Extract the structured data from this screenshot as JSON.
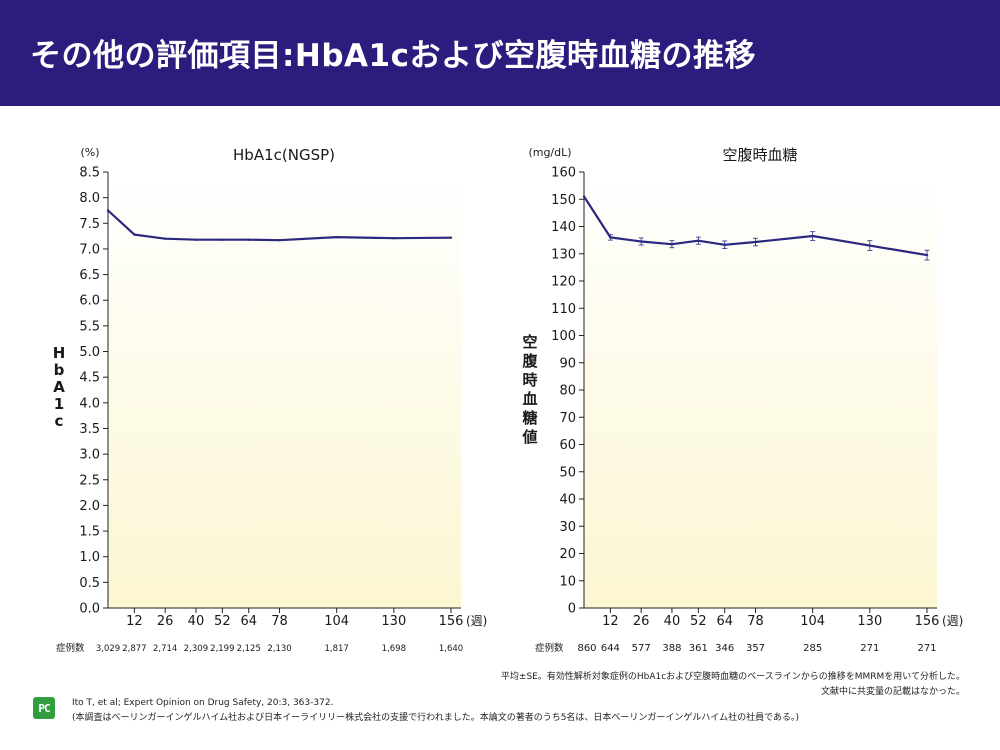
{
  "page_title": "その他の評価項目:HbA1cおよび空腹時血糖の推移",
  "colors": {
    "header": "#2b1d7e",
    "line": "#2b2880",
    "fill_top": "#ffffff",
    "fill_bottom": "#fcf6d2"
  },
  "chart_data": [
    {
      "type": "line",
      "title": "HbA1c(NGSP)",
      "unit_label": "(%)",
      "ylabel": "HbA1c",
      "x_unit": "(週)",
      "ylim": [
        0,
        8.5
      ],
      "y_ticks": [
        "0.0",
        "0.5",
        "1.0",
        "1.5",
        "2.0",
        "2.5",
        "3.0",
        "3.5",
        "4.0",
        "4.5",
        "5.0",
        "5.5",
        "6.0",
        "6.5",
        "7.0",
        "7.5",
        "8.0",
        "8.5"
      ],
      "x": [
        0,
        12,
        26,
        40,
        52,
        64,
        78,
        104,
        130,
        156
      ],
      "x_tick_labels": [
        "12",
        "26",
        "40",
        "52",
        "64",
        "78",
        "104",
        "130",
        "156"
      ],
      "values": [
        7.75,
        7.28,
        7.2,
        7.18,
        7.18,
        7.18,
        7.17,
        7.23,
        7.21,
        7.22
      ],
      "cases_label": "症例数",
      "cases": [
        "3,029",
        "2,877",
        "2,714",
        "2,309",
        "2,199",
        "2,125",
        "2,130",
        "1,817",
        "1,698",
        "1,640"
      ]
    },
    {
      "type": "line",
      "title": "空腹時血糖",
      "unit_label": "(mg/dL)",
      "ylabel": "空腹時血糖値",
      "x_unit": "(週)",
      "ylim": [
        0,
        160
      ],
      "y_ticks": [
        "0",
        "10",
        "20",
        "30",
        "40",
        "50",
        "60",
        "70",
        "80",
        "90",
        "100",
        "110",
        "120",
        "130",
        "140",
        "150",
        "160"
      ],
      "x": [
        0,
        12,
        26,
        40,
        52,
        64,
        78,
        104,
        130,
        156
      ],
      "x_tick_labels": [
        "12",
        "26",
        "40",
        "52",
        "64",
        "78",
        "104",
        "130",
        "156"
      ],
      "values": [
        151,
        136,
        134.5,
        133.5,
        134.8,
        133.3,
        134.3,
        136.5,
        133,
        129.5
      ],
      "error": [
        0,
        1,
        1.3,
        1.3,
        1.3,
        1.4,
        1.4,
        1.6,
        1.8,
        1.8
      ],
      "cases_label": "症例数",
      "cases": [
        "860",
        "644",
        "577",
        "388",
        "361",
        "346",
        "357",
        "285",
        "271",
        "271"
      ]
    }
  ],
  "footnotes": {
    "line1": "平均±SE。有効性解析対象症例のHbA1cおよび空腹時血糖のベースラインからの推移をMMRMを用いて分析した。",
    "line2": "文献中に共変量の記載はなかった。"
  },
  "logo_text": "PC",
  "reference": "Ito T, et al; Expert Opinion on Drug Safety, 20:3, 363-372.",
  "disclosure": "(本調査はベーリンガーインゲルハイム社および日本イーライリリー株式会社の支援で行われました。本論文の著者のうち5名は、日本ベーリンガーインゲルハイム社の社員である。)"
}
